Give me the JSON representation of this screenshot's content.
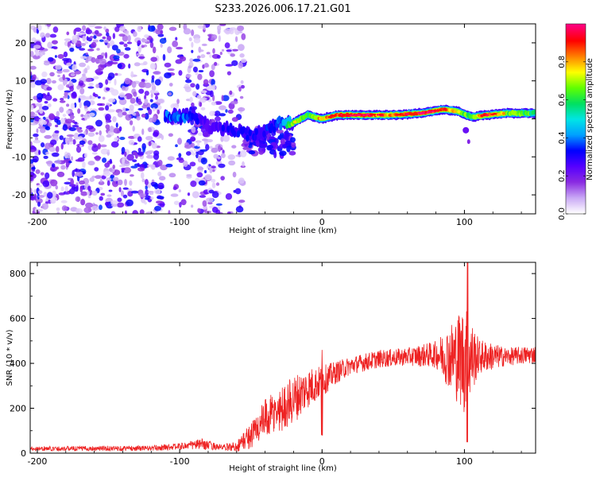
{
  "title": "S233.2026.006.17.21.G01",
  "chart_data": [
    {
      "type": "heatmap",
      "name": "spectrogram",
      "xlabel": "Height of straight line (km)",
      "ylabel": "Frequency (Hz)",
      "xlim": [
        -205,
        150
      ],
      "ylim": [
        -25,
        25
      ],
      "xticks": [
        -200,
        -100,
        0,
        100
      ],
      "xtick_labels": [
        "-200",
        "-100",
        "0",
        "100"
      ],
      "yticks": [
        -20,
        -10,
        0,
        10,
        20
      ],
      "ytick_labels": [
        "-20",
        "-10",
        "0",
        "10",
        "20"
      ],
      "colorbar": {
        "label": "Normalized spectral amplitude",
        "range": [
          0.0,
          1.0
        ],
        "ticks": [
          0.0,
          0.2,
          0.4,
          0.6,
          0.8
        ],
        "tick_labels": [
          "0.0",
          "0.2",
          "0.4",
          "0.6",
          "0.8"
        ],
        "colormap": [
          "#ffffff",
          "#c9a8f5",
          "#8a2be2",
          "#5500ff",
          "#0000ff",
          "#00a0ff",
          "#00e5e5",
          "#00e060",
          "#60ff00",
          "#ffff00",
          "#ff8000",
          "#ff0000",
          "#ff0080"
        ]
      },
      "noise_region_x": [
        -205,
        -55
      ],
      "transition_region_x": [
        -55,
        -20
      ],
      "signal_track": [
        {
          "x": -110,
          "freq": 1.0,
          "amp": 0.35
        },
        {
          "x": -100,
          "freq": 0.5,
          "amp": 0.4
        },
        {
          "x": -90,
          "freq": 1.0,
          "amp": 0.3
        },
        {
          "x": -80,
          "freq": -2.0,
          "amp": 0.25
        },
        {
          "x": -65,
          "freq": -3.0,
          "amp": 0.3
        },
        {
          "x": -45,
          "freq": -4.0,
          "amp": 0.3
        },
        {
          "x": -30,
          "freq": -1.0,
          "amp": 0.35
        },
        {
          "x": -20,
          "freq": -1.0,
          "amp": 0.7
        },
        {
          "x": -10,
          "freq": 1.0,
          "amp": 0.6
        },
        {
          "x": 0,
          "freq": 0.0,
          "amp": 0.8
        },
        {
          "x": 10,
          "freq": 1.0,
          "amp": 0.9
        },
        {
          "x": 30,
          "freq": 1.0,
          "amp": 0.95
        },
        {
          "x": 50,
          "freq": 1.0,
          "amp": 0.8
        },
        {
          "x": 70,
          "freq": 1.5,
          "amp": 0.95
        },
        {
          "x": 85,
          "freq": 2.5,
          "amp": 0.85
        },
        {
          "x": 95,
          "freq": 2.0,
          "amp": 0.7
        },
        {
          "x": 105,
          "freq": 0.5,
          "amp": 0.6
        },
        {
          "x": 115,
          "freq": 1.0,
          "amp": 0.9
        },
        {
          "x": 130,
          "freq": 1.5,
          "amp": 0.7
        },
        {
          "x": 150,
          "freq": 1.5,
          "amp": 0.6
        }
      ]
    },
    {
      "type": "line",
      "name": "snr",
      "xlabel": "Height of straight line (km)",
      "ylabel": "SNR (10 * v/v)",
      "xlim": [
        -205,
        150
      ],
      "ylim": [
        0,
        850
      ],
      "xticks": [
        -200,
        -100,
        0,
        100
      ],
      "xtick_labels": [
        "-200",
        "-100",
        "0",
        "100"
      ],
      "yticks": [
        0,
        200,
        400,
        600,
        800
      ],
      "ytick_labels": [
        "0",
        "200",
        "400",
        "600",
        "800"
      ],
      "color": "#ee2222",
      "envelope": [
        {
          "x": -205,
          "mean": 20,
          "noise": 10
        },
        {
          "x": -120,
          "mean": 22,
          "noise": 12
        },
        {
          "x": -100,
          "mean": 30,
          "noise": 15
        },
        {
          "x": -85,
          "mean": 40,
          "noise": 25
        },
        {
          "x": -70,
          "mean": 25,
          "noise": 12
        },
        {
          "x": -60,
          "mean": 30,
          "noise": 25
        },
        {
          "x": -50,
          "mean": 80,
          "noise": 60
        },
        {
          "x": -40,
          "mean": 150,
          "noise": 90
        },
        {
          "x": -30,
          "mean": 190,
          "noise": 100
        },
        {
          "x": -20,
          "mean": 240,
          "noise": 110
        },
        {
          "x": -10,
          "mean": 290,
          "noise": 90
        },
        {
          "x": 0,
          "mean": 320,
          "noise": 70
        },
        {
          "x": 10,
          "mean": 360,
          "noise": 50
        },
        {
          "x": 20,
          "mean": 390,
          "noise": 40
        },
        {
          "x": 40,
          "mean": 420,
          "noise": 40
        },
        {
          "x": 60,
          "mean": 430,
          "noise": 40
        },
        {
          "x": 80,
          "mean": 440,
          "noise": 60
        },
        {
          "x": 90,
          "mean": 430,
          "noise": 150
        },
        {
          "x": 100,
          "mean": 420,
          "noise": 250
        },
        {
          "x": 110,
          "mean": 430,
          "noise": 80
        },
        {
          "x": 130,
          "mean": 430,
          "noise": 40
        },
        {
          "x": 150,
          "mean": 440,
          "noise": 40
        }
      ],
      "features": [
        {
          "x": 0,
          "value": 460,
          "note": "spike"
        },
        {
          "x": 0,
          "value": 80,
          "note": "dip"
        },
        {
          "x": 102,
          "value": 850,
          "note": "max spike"
        },
        {
          "x": 102,
          "value": 50,
          "note": "min dip"
        }
      ]
    }
  ]
}
